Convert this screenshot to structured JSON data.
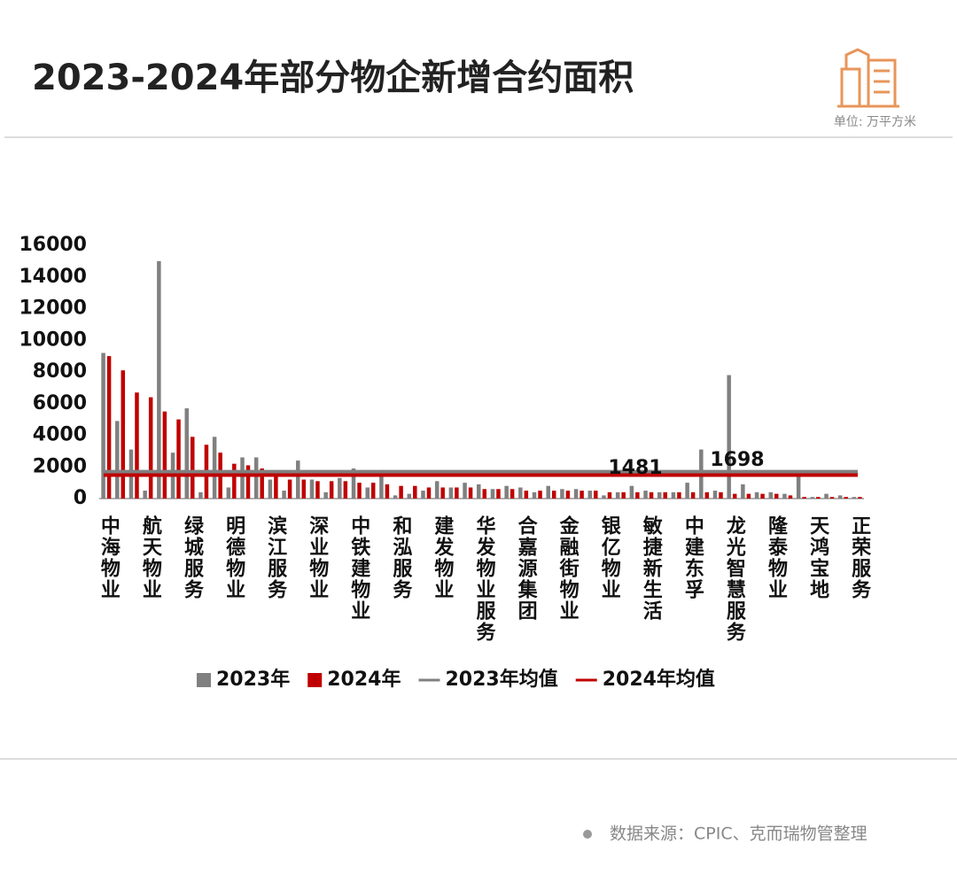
{
  "header": {
    "title": "2023-2024年部分物企新增合约面积",
    "unit": "单位: 万平方米"
  },
  "footer": {
    "source": "数据来源：CPIC、克而瑞物管整理"
  },
  "chart_data": {
    "type": "bar",
    "categories": [
      "中海物业",
      null,
      null,
      "航天物业",
      null,
      null,
      "绿城服务",
      null,
      null,
      "明德物业",
      null,
      null,
      "滨江服务",
      null,
      null,
      "深业物业",
      null,
      null,
      "中铁建物业",
      null,
      null,
      "和泓服务",
      null,
      null,
      "建发物业",
      null,
      null,
      "华发物业服务",
      null,
      null,
      "合嘉源集团",
      null,
      null,
      "金融街物业",
      null,
      null,
      "银亿物业",
      null,
      null,
      "敏捷新生活",
      null,
      null,
      "中建东孚",
      null,
      null,
      "龙光智慧服务",
      null,
      null,
      "隆泰物业",
      null,
      null,
      "天鸿宝地",
      null,
      null,
      "正荣服务"
    ],
    "series": [
      {
        "name": "2023年",
        "color": "#808080",
        "values": [
          9200,
          4900,
          3100,
          500,
          15000,
          2900,
          5700,
          400,
          3900,
          700,
          2600,
          2600,
          1200,
          500,
          2400,
          1200,
          400,
          1300,
          1900,
          700,
          1800,
          200,
          300,
          500,
          1100,
          700,
          1000,
          900,
          600,
          800,
          700,
          400,
          800,
          600,
          600,
          500,
          200,
          400,
          800,
          500,
          400,
          400,
          1000,
          3100,
          500,
          7800,
          900,
          400,
          400,
          300,
          1500,
          100,
          300,
          200,
          100
        ]
      },
      {
        "name": "2024年",
        "color": "#c00000",
        "values": [
          9000,
          8100,
          6700,
          6400,
          5500,
          5000,
          3900,
          3400,
          2900,
          2200,
          2100,
          1900,
          1500,
          1200,
          1200,
          1100,
          1100,
          1100,
          1000,
          1000,
          900,
          800,
          800,
          700,
          700,
          700,
          700,
          600,
          600,
          600,
          500,
          500,
          500,
          500,
          500,
          500,
          400,
          400,
          400,
          400,
          400,
          400,
          400,
          400,
          400,
          300,
          300,
          300,
          300,
          200,
          100,
          100,
          100,
          100,
          100
        ]
      }
    ],
    "mean_lines": [
      {
        "name": "2023年均值",
        "color": "#808080",
        "value": 1698
      },
      {
        "name": "2024年均值",
        "color": "#c00000",
        "value": 1481
      }
    ],
    "ylim": [
      0,
      16000
    ],
    "yticks": [
      0,
      2000,
      4000,
      6000,
      8000,
      10000,
      12000,
      14000,
      16000
    ],
    "grid": false
  }
}
